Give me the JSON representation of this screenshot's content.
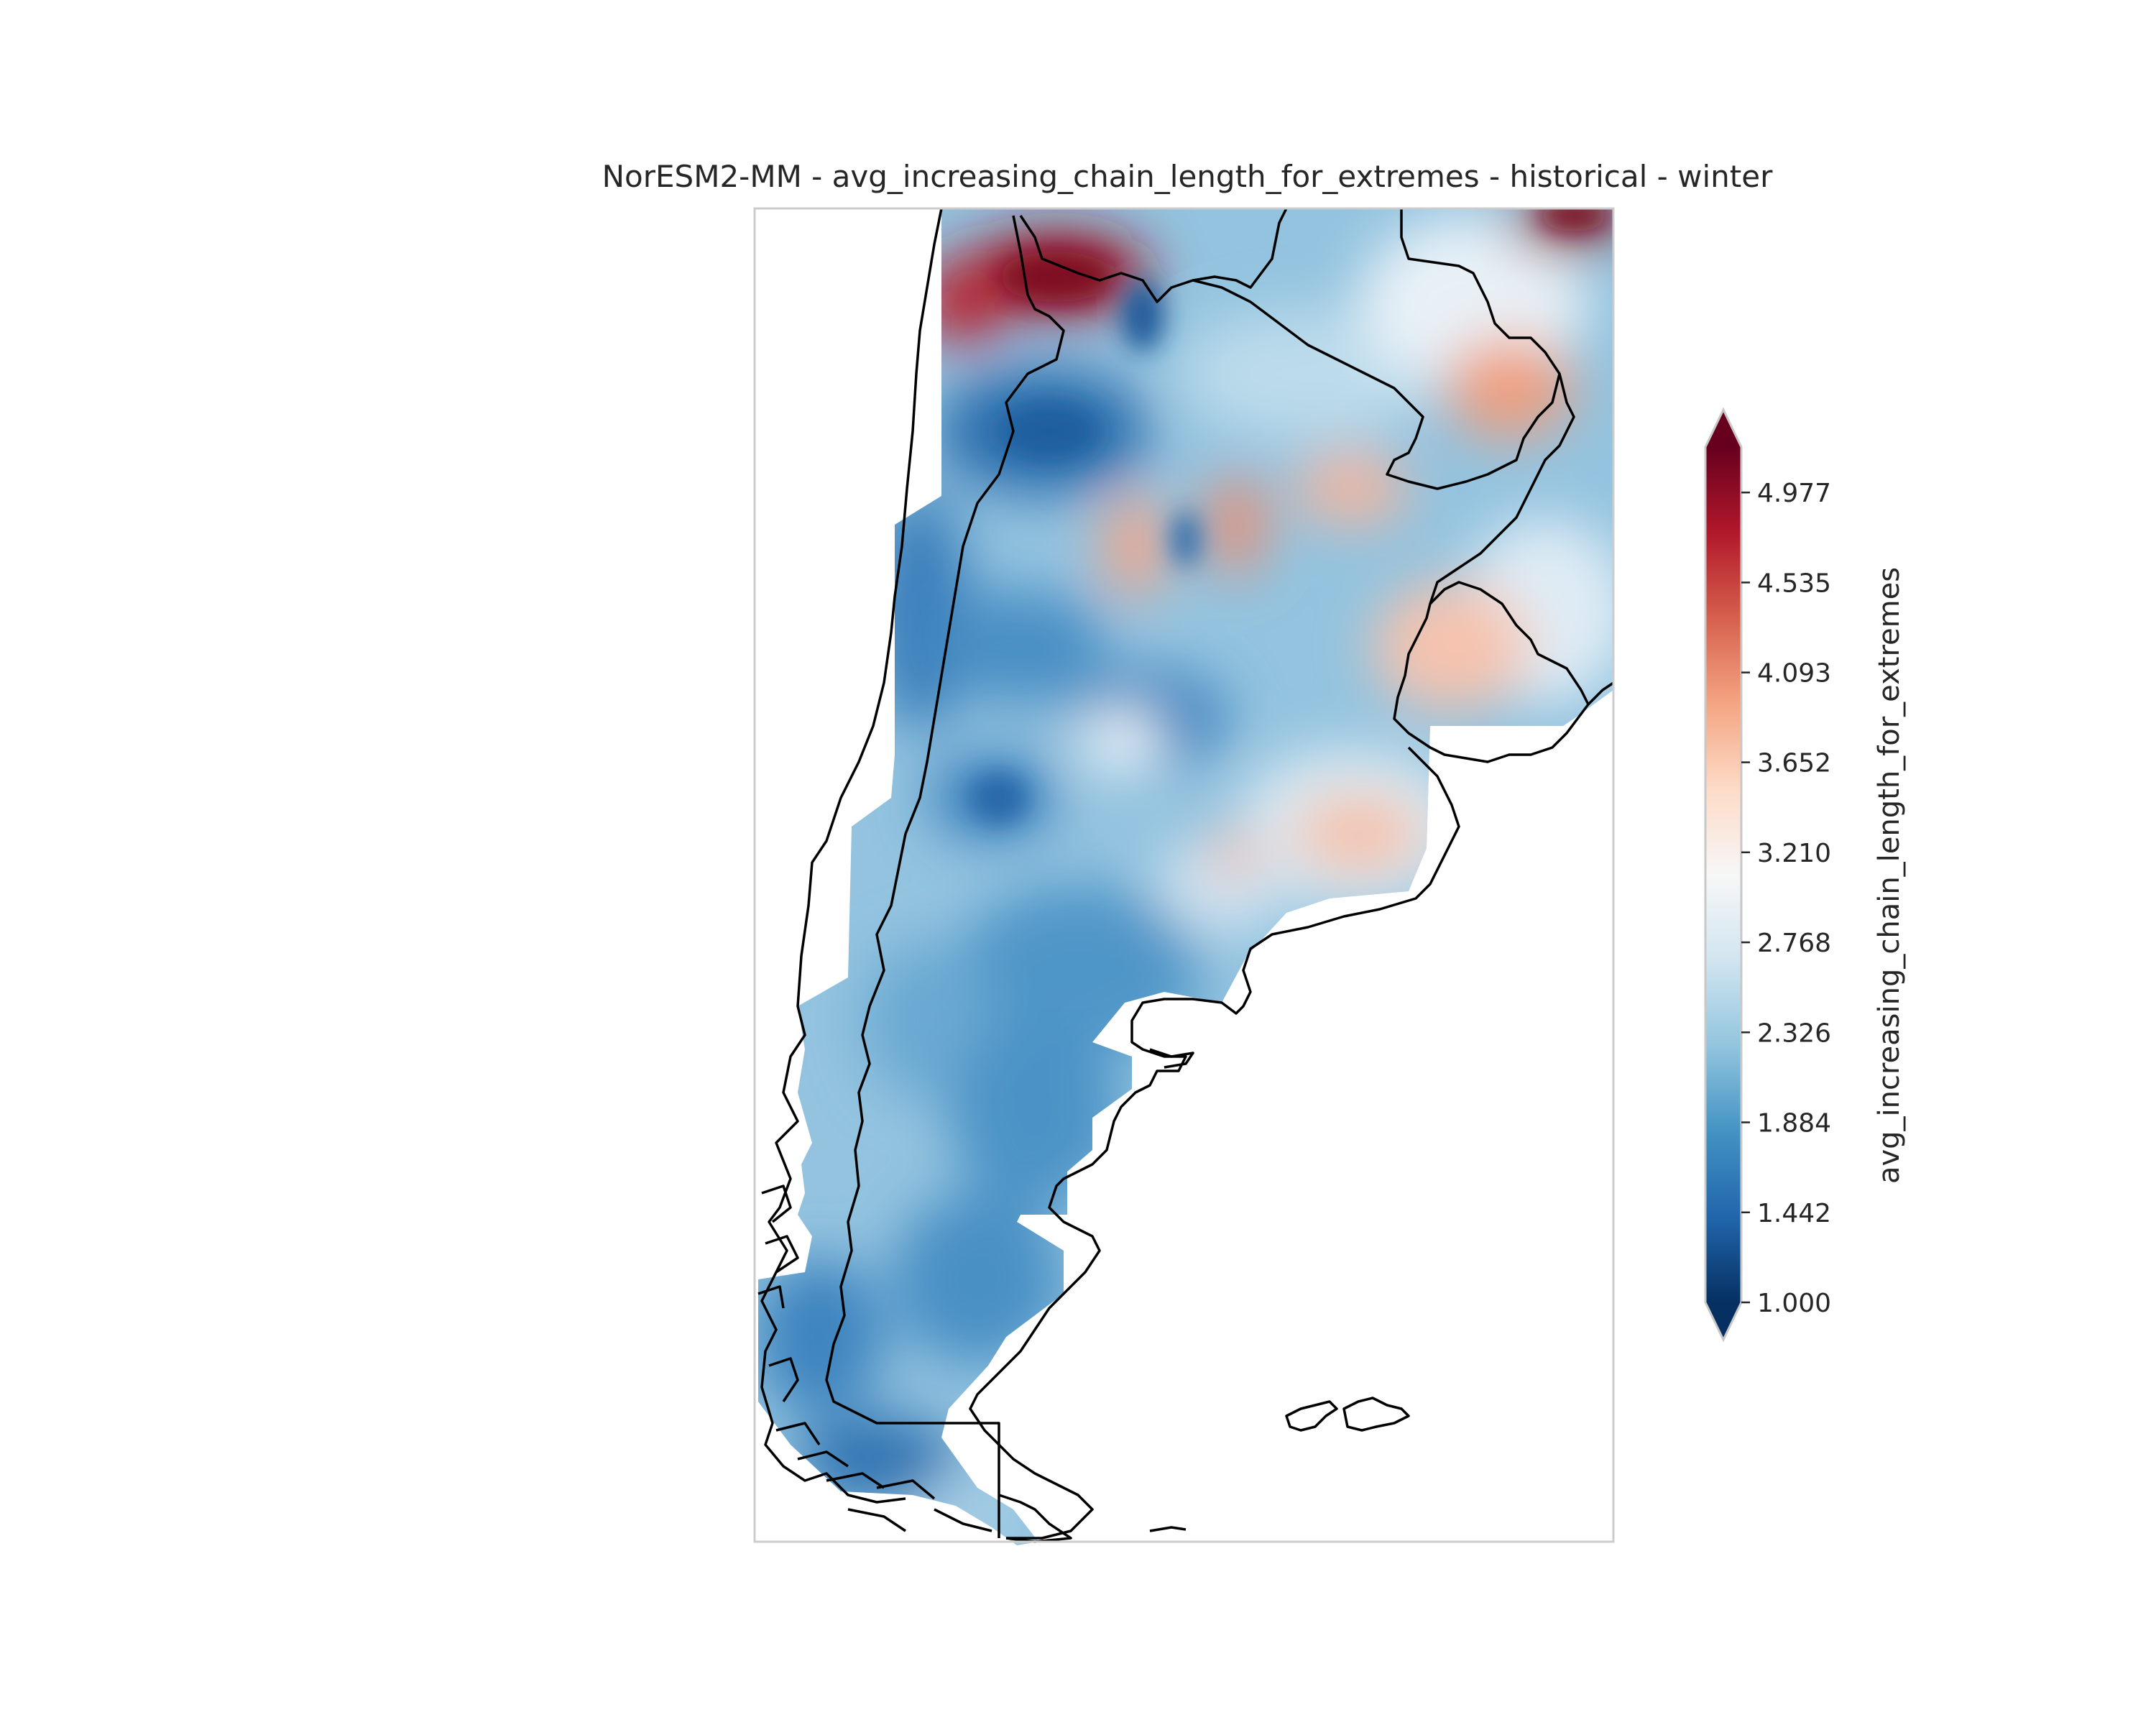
{
  "title": "NorESM2-MM - avg_increasing_chain_length_for_extremes - historical - winter",
  "colorbar": {
    "label": "avg_increasing_chain_length_for_extremes",
    "ticks": [
      "1.000",
      "1.442",
      "1.884",
      "2.326",
      "2.768",
      "3.210",
      "3.652",
      "4.093",
      "4.535",
      "4.977"
    ],
    "min": 1.0,
    "max": 5.2,
    "extend": "both",
    "colormap": "RdBu_r",
    "colors": [
      "#053061",
      "#2166ac",
      "#4393c3",
      "#92c5de",
      "#d1e5f0",
      "#f7f7f7",
      "#fddbc7",
      "#f4a582",
      "#d6604d",
      "#b2182b",
      "#67001f"
    ]
  },
  "map": {
    "region": "Argentina and southern South America",
    "field_description": "Winter historical values mostly 1.4–3.0 (blue) over Patagonia and the Andes, with higher values 3.5–5.2 (red) in the northwest corner, the northeast and Uruguay."
  }
}
